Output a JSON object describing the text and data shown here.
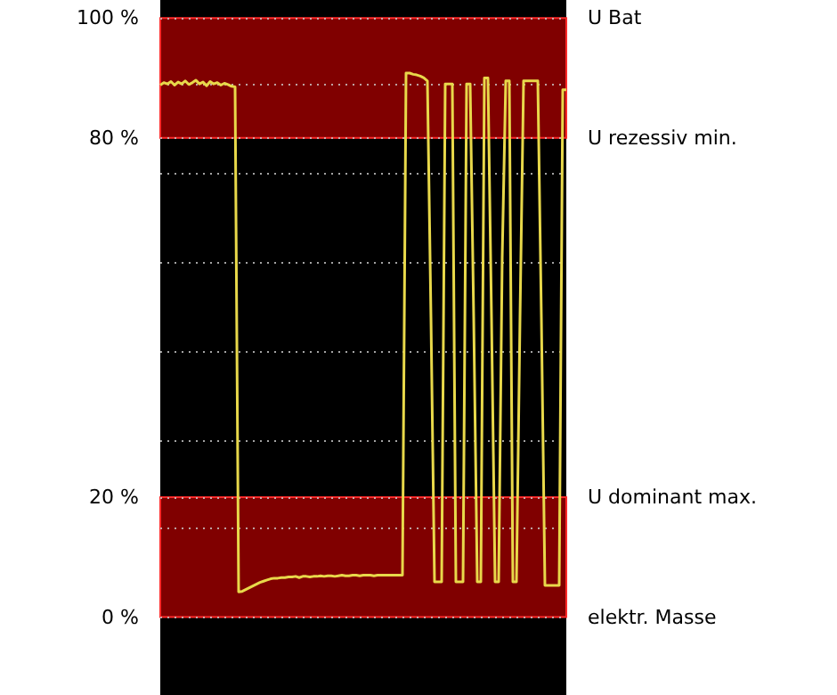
{
  "chart_data": {
    "type": "line",
    "categories": [
      null,
      null,
      null,
      null,
      null,
      null,
      null,
      null,
      null,
      null,
      null,
      null,
      null,
      null,
      null,
      null,
      null,
      null,
      null,
      null,
      null,
      null,
      null,
      null,
      null,
      null,
      null,
      null,
      null,
      null,
      null,
      null,
      null,
      null,
      null,
      null,
      null,
      null,
      null,
      null,
      null,
      null,
      null,
      null,
      null,
      null,
      null,
      null,
      null,
      null,
      null,
      null,
      null,
      null,
      null,
      null,
      null,
      null,
      null,
      null,
      null,
      null,
      null,
      null,
      null,
      null,
      null,
      null,
      null,
      null,
      null,
      null,
      null,
      null,
      null,
      null,
      null,
      null,
      null,
      null,
      null,
      null,
      null,
      null,
      null,
      null,
      null,
      null,
      null,
      null,
      null,
      null,
      null,
      null,
      null,
      null,
      null,
      null,
      null,
      null,
      null,
      null,
      null,
      null,
      null,
      null,
      null,
      null,
      null,
      null,
      null,
      null,
      null,
      null,
      null
    ],
    "series": [
      {
        "color": "#e8d84a",
        "values": [
          88.8,
          89.2,
          89.0,
          89.4,
          88.8,
          89.3,
          89.0,
          89.5,
          88.9,
          89.2,
          89.6,
          89.0,
          89.3,
          88.7,
          89.4,
          89.0,
          89.2,
          88.8,
          89.1,
          88.9,
          88.6,
          88.5,
          4.2,
          4.3,
          4.6,
          4.9,
          5.2,
          5.5,
          5.8,
          6.0,
          6.2,
          6.4,
          6.5,
          6.5,
          6.6,
          6.6,
          6.7,
          6.7,
          6.8,
          6.6,
          6.8,
          6.8,
          6.7,
          6.8,
          6.8,
          6.9,
          6.8,
          6.9,
          6.9,
          6.8,
          6.9,
          7.0,
          6.9,
          6.9,
          7.0,
          7.0,
          6.9,
          7.0,
          7.0,
          7.0,
          6.9,
          7.0,
          7.0,
          7.0,
          7.0,
          7.0,
          7.0,
          7.0,
          7.0,
          90.8,
          90.8,
          90.6,
          90.5,
          90.3,
          90.0,
          89.5,
          50,
          5.9,
          5.9,
          5.9,
          89,
          89,
          89,
          5.9,
          5.9,
          5.9,
          89,
          89,
          50,
          5.9,
          5.9,
          90,
          90,
          50,
          5.9,
          5.9,
          60,
          89.5,
          89.5,
          5.9,
          5.9,
          50,
          89.5,
          89.5,
          89.5,
          89.5,
          89.5,
          50,
          5.3,
          5.3,
          5.3,
          5.3,
          5.3,
          88,
          88
        ]
      }
    ],
    "ylim": [
      -13,
      103
    ],
    "yticks": [
      {
        "value": 0,
        "label": "0 %"
      },
      {
        "value": 14.8,
        "label": null
      },
      {
        "value": 20,
        "label": "20 %"
      },
      {
        "value": 29.6,
        "label": null
      },
      {
        "value": 44.4,
        "label": null
      },
      {
        "value": 59.2,
        "label": null
      },
      {
        "value": 74,
        "label": null
      },
      {
        "value": 80,
        "label": "80 %"
      },
      {
        "value": 88.8,
        "label": null
      },
      {
        "value": 100,
        "label": "100 %"
      }
    ],
    "tick_labels": "y",
    "grid": "y",
    "line_style": "solid",
    "bands": [
      {
        "axis": "y",
        "from": 80,
        "to": 100,
        "color": "#800000"
      },
      {
        "axis": "y",
        "from": 0,
        "to": 20,
        "color": "#800000"
      }
    ],
    "annotations": [
      "U Bat",
      "U rezessiv min.",
      "U dominant max.",
      "elektr. Masse"
    ]
  }
}
